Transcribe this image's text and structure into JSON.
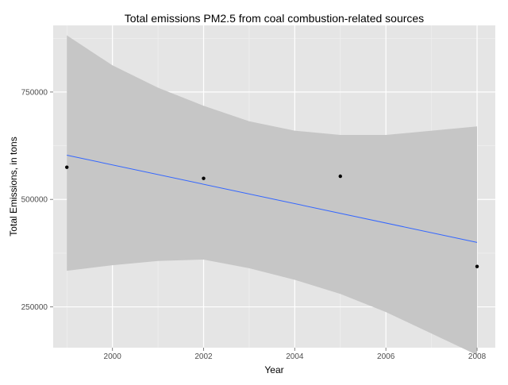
{
  "chart_data": {
    "type": "scatter",
    "title": "Total emissions PM2.5 from coal combustion-related sources",
    "xlabel": "Year",
    "ylabel": "Total Emissions, in tons",
    "xlim": [
      1998.7,
      2008.4
    ],
    "ylim": [
      155000,
      905000
    ],
    "x_ticks": [
      2000,
      2002,
      2004,
      2006,
      2008
    ],
    "x_tick_labels": [
      "2000",
      "2002",
      "2004",
      "2006",
      "2008"
    ],
    "y_ticks": [
      250000,
      500000,
      750000
    ],
    "y_tick_labels": [
      "250000",
      "500000",
      "750000"
    ],
    "grid": true,
    "points": [
      {
        "x": 1999,
        "y": 575000
      },
      {
        "x": 2002,
        "y": 549000
      },
      {
        "x": 2005,
        "y": 554000
      },
      {
        "x": 2008,
        "y": 344000
      }
    ],
    "trend_line": {
      "x": [
        1999,
        2008
      ],
      "y": [
        603000,
        400000
      ]
    },
    "confidence_band": {
      "x": [
        1999,
        2000,
        2001,
        2002,
        2003,
        2004,
        2005,
        2006,
        2008
      ],
      "upper": [
        882000,
        812000,
        760000,
        718000,
        682000,
        660000,
        650000,
        650000,
        670000
      ],
      "lower": [
        334000,
        347000,
        357000,
        360000,
        340000,
        313000,
        280000,
        238000,
        138000
      ]
    },
    "colors": {
      "panel": "#e5e5e5",
      "grid_major": "#ffffff",
      "grid_minor": "#f2f2f2",
      "band": "#c6c6c6",
      "line": "#3366ff",
      "point": "#000000",
      "tick_text": "#4d4d4d",
      "text": "#000000"
    }
  }
}
